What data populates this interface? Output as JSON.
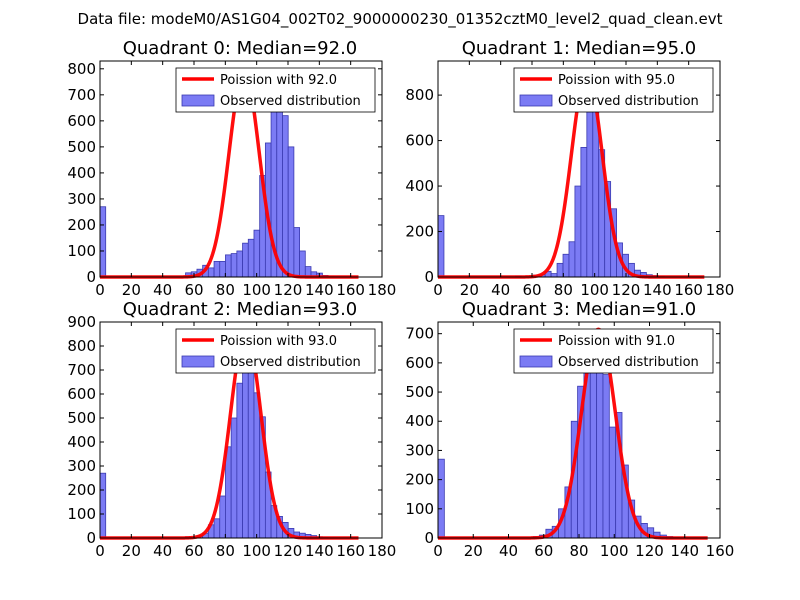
{
  "suptitle": "Data file: modeM0/AS1G04_002T02_9000000230_01352cztM0_level2_quad_clean.evt",
  "colors": {
    "bars": "#7b7bf4",
    "bar_edge": "#3a3ab0",
    "curve": "#ff0000"
  },
  "chart_data": [
    {
      "type": "bar",
      "title": "Quadrant 0: Median=92.0",
      "median": 92.0,
      "legend": {
        "line": "Poission with 92.0",
        "bars": "Observed distribution",
        "placement": "top-right"
      },
      "xlim": [
        0,
        180
      ],
      "ylim": [
        0,
        830
      ],
      "xticks": [
        0,
        20,
        40,
        60,
        80,
        100,
        120,
        140,
        160,
        180
      ],
      "yticks": [
        0,
        100,
        200,
        300,
        400,
        500,
        600,
        700,
        800
      ],
      "bar_width": 3.64,
      "bins": [
        0,
        3.64,
        7.28,
        10.92,
        14.56,
        18.2,
        21.84,
        25.48,
        29.12,
        32.76,
        36.4,
        40.04,
        43.68,
        47.32,
        50.96,
        54.6,
        58.24,
        61.88,
        65.52,
        69.16,
        72.8,
        76.44,
        80.08,
        83.72,
        87.36,
        91.0,
        94.64,
        98.28,
        101.92,
        105.56,
        109.2,
        112.84,
        116.48,
        120.12,
        123.76,
        127.4,
        131.04,
        134.68,
        138.32,
        141.96,
        145.6,
        149.24,
        152.88,
        156.52,
        160.16,
        163.8
      ],
      "values": [
        270,
        0,
        0,
        0,
        0,
        0,
        0,
        0,
        0,
        0,
        0,
        0,
        0,
        0,
        0,
        16,
        20,
        30,
        45,
        35,
        60,
        60,
        85,
        90,
        100,
        130,
        145,
        180,
        390,
        515,
        660,
        700,
        620,
        500,
        190,
        100,
        40,
        20,
        15,
        6,
        3,
        2,
        1,
        1,
        0,
        0
      ],
      "curve_mean": 92.0,
      "curve_peak": 790,
      "curve_sigma": 9.6,
      "curve_x": [
        0,
        165
      ]
    },
    {
      "type": "bar",
      "title": "Quadrant 1: Median=95.0",
      "median": 95.0,
      "legend": {
        "line": "Poission with 95.0",
        "bars": "Observed distribution",
        "placement": "top-right"
      },
      "xlim": [
        0,
        180
      ],
      "ylim": [
        0,
        950
      ],
      "xticks": [
        0,
        20,
        40,
        60,
        80,
        100,
        120,
        140,
        160,
        180
      ],
      "yticks": [
        0,
        200,
        400,
        600,
        800
      ],
      "bar_width": 3.8,
      "bins": [
        0,
        3.8,
        7.6,
        11.4,
        15.2,
        19.0,
        22.8,
        26.6,
        30.4,
        34.2,
        38.0,
        41.8,
        45.6,
        49.4,
        53.2,
        57.0,
        60.8,
        64.6,
        68.4,
        72.2,
        76.0,
        79.8,
        83.6,
        87.4,
        91.2,
        95.0,
        98.8,
        102.6,
        106.4,
        110.2,
        114.0,
        117.8,
        121.6,
        125.4,
        129.2,
        133.0,
        136.8,
        140.6,
        144.4,
        148.2,
        152.0,
        155.8,
        159.6,
        163.4,
        167.2,
        171.0
      ],
      "values": [
        270,
        0,
        0,
        0,
        0,
        0,
        0,
        0,
        0,
        0,
        0,
        0,
        0,
        4,
        0,
        0,
        8,
        10,
        25,
        15,
        60,
        100,
        155,
        400,
        570,
        800,
        825,
        560,
        420,
        300,
        150,
        100,
        60,
        30,
        20,
        10,
        6,
        3,
        1,
        0,
        0,
        0,
        0,
        0,
        0,
        0
      ],
      "curve_mean": 95.0,
      "curve_peak": 900,
      "curve_sigma": 9.75,
      "curve_x": [
        0,
        170
      ]
    },
    {
      "type": "bar",
      "title": "Quadrant 2: Median=93.0",
      "median": 93.0,
      "legend": {
        "line": "Poission with 93.0",
        "bars": "Observed distribution",
        "placement": "top-right"
      },
      "xlim": [
        0,
        180
      ],
      "ylim": [
        0,
        900
      ],
      "xticks": [
        0,
        20,
        40,
        60,
        80,
        100,
        120,
        140,
        160,
        180
      ],
      "yticks": [
        0,
        100,
        200,
        300,
        400,
        500,
        600,
        700,
        800,
        900
      ],
      "bar_width": 3.64,
      "bins": [
        0,
        3.64,
        7.28,
        10.92,
        14.56,
        18.2,
        21.84,
        25.48,
        29.12,
        32.76,
        36.4,
        40.04,
        43.68,
        47.32,
        50.96,
        54.6,
        58.24,
        61.88,
        65.52,
        69.16,
        72.8,
        76.44,
        80.08,
        83.72,
        87.36,
        91.0,
        94.64,
        98.28,
        101.92,
        105.56,
        109.2,
        112.84,
        116.48,
        120.12,
        123.76,
        127.4,
        131.04,
        134.68,
        138.32,
        141.96,
        145.6,
        149.24,
        152.88,
        156.52,
        160.16,
        163.8
      ],
      "values": [
        270,
        0,
        0,
        0,
        0,
        0,
        0,
        0,
        0,
        0,
        0,
        0,
        0,
        0,
        0,
        5,
        0,
        10,
        20,
        55,
        80,
        175,
        380,
        500,
        645,
        855,
        735,
        605,
        505,
        275,
        135,
        90,
        65,
        40,
        25,
        20,
        15,
        10,
        5,
        2,
        1,
        1,
        0,
        0,
        0,
        0
      ],
      "curve_mean": 93.0,
      "curve_peak": 860,
      "curve_sigma": 9.65,
      "curve_x": [
        0,
        165
      ]
    },
    {
      "type": "bar",
      "title": "Quadrant 3: Median=91.0",
      "median": 91.0,
      "legend": {
        "line": "Poission with 91.0",
        "bars": "Observed distribution",
        "placement": "top-right"
      },
      "xlim": [
        0,
        160
      ],
      "ylim": [
        0,
        740
      ],
      "xticks": [
        0,
        20,
        40,
        60,
        80,
        100,
        120,
        140,
        160
      ],
      "yticks": [
        0,
        100,
        200,
        300,
        400,
        500,
        600,
        700
      ],
      "bar_width": 3.6,
      "bins": [
        0,
        3.6,
        7.2,
        10.8,
        14.4,
        18.0,
        21.6,
        25.2,
        28.8,
        32.4,
        36.0,
        39.6,
        43.2,
        46.8,
        50.4,
        54.0,
        57.6,
        61.2,
        64.8,
        68.4,
        72.0,
        75.6,
        79.2,
        82.8,
        86.4,
        90.0,
        93.6,
        97.2,
        100.8,
        104.4,
        108.0,
        111.6,
        115.2,
        118.8,
        122.4,
        126.0,
        129.6,
        133.2,
        136.8,
        140.4,
        144.0,
        147.6,
        151.2
      ],
      "values": [
        270,
        0,
        0,
        0,
        0,
        0,
        0,
        0,
        0,
        0,
        0,
        0,
        0,
        0,
        0,
        5,
        10,
        30,
        40,
        100,
        175,
        400,
        520,
        600,
        640,
        700,
        560,
        380,
        430,
        250,
        130,
        75,
        50,
        35,
        20,
        10,
        5,
        2,
        1,
        0,
        0,
        0,
        0
      ],
      "curve_mean": 91.0,
      "curve_peak": 715,
      "curve_sigma": 9.55,
      "curve_x": [
        0,
        153
      ]
    }
  ]
}
